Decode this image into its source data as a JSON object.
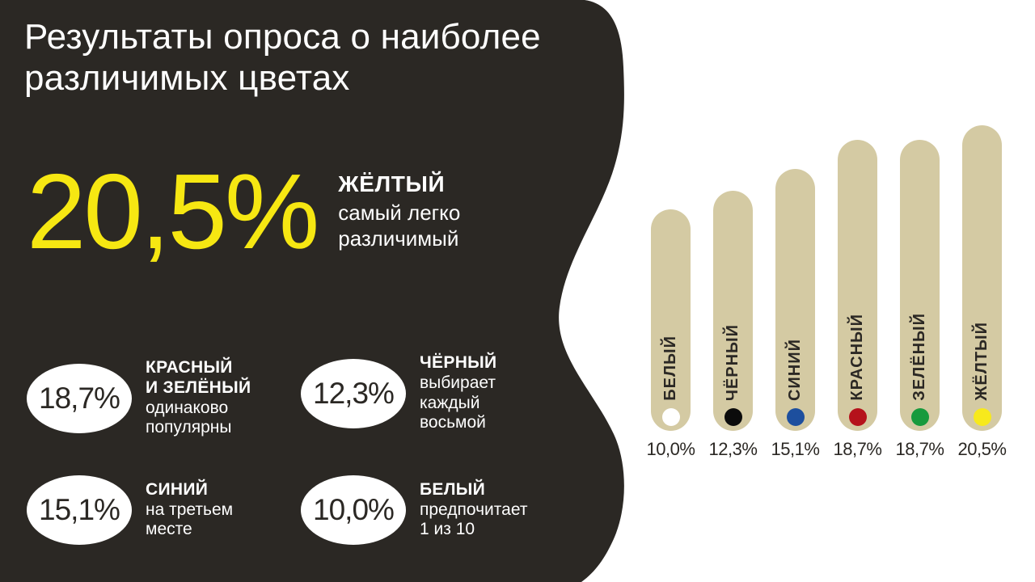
{
  "slide": {
    "title": "Результаты опроса о наиболее\nразличимых цветах",
    "hero": {
      "value": "20,5%",
      "color_name": "ЖЁЛТЫЙ",
      "description": "самый легко\nразличимый"
    },
    "stats": [
      {
        "value": "18,7%",
        "bold": "КРАСНЫЙ\nИ ЗЕЛЁНЫЙ",
        "text": "одинаково\nпопулярны"
      },
      {
        "value": "12,3%",
        "bold": "ЧЁРНЫЙ",
        "text": "выбирает\nкаждый\nвосьмой"
      },
      {
        "value": "15,1%",
        "bold": "СИНИЙ",
        "text": "на третьем\nместе"
      },
      {
        "value": "10,0%",
        "bold": "БЕЛЫЙ",
        "text": "предпочитает\n1 из 10"
      }
    ]
  },
  "colors": {
    "panel_dark": "#2b2824",
    "accent_yellow": "#f6e712",
    "bar_fill": "#d4caa3",
    "text_light": "#ffffff",
    "text_dark": "#2b2824",
    "background": "#ffffff"
  },
  "chart_data": {
    "type": "bar",
    "orientation": "vertical",
    "title": "",
    "categories": [
      "БЕЛЫЙ",
      "ЧЁРНЫЙ",
      "СИНИЙ",
      "КРАСНЫЙ",
      "ЗЕЛЁНЫЙ",
      "ЖЁЛТЫЙ"
    ],
    "values": [
      10.0,
      12.3,
      15.1,
      18.7,
      18.7,
      20.5
    ],
    "value_labels": [
      "10,0%",
      "12,3%",
      "15,1%",
      "18,7%",
      "18,7%",
      "20,5%"
    ],
    "unit": "%",
    "dot_colors": [
      "#ffffff",
      "#0b0b0b",
      "#1d4f9e",
      "#b5121b",
      "#189a3d",
      "#f7e91c"
    ],
    "bar_color": "#d4caa3",
    "grid": false,
    "legend": "none",
    "value_axis_range": [
      0,
      20.5
    ]
  }
}
